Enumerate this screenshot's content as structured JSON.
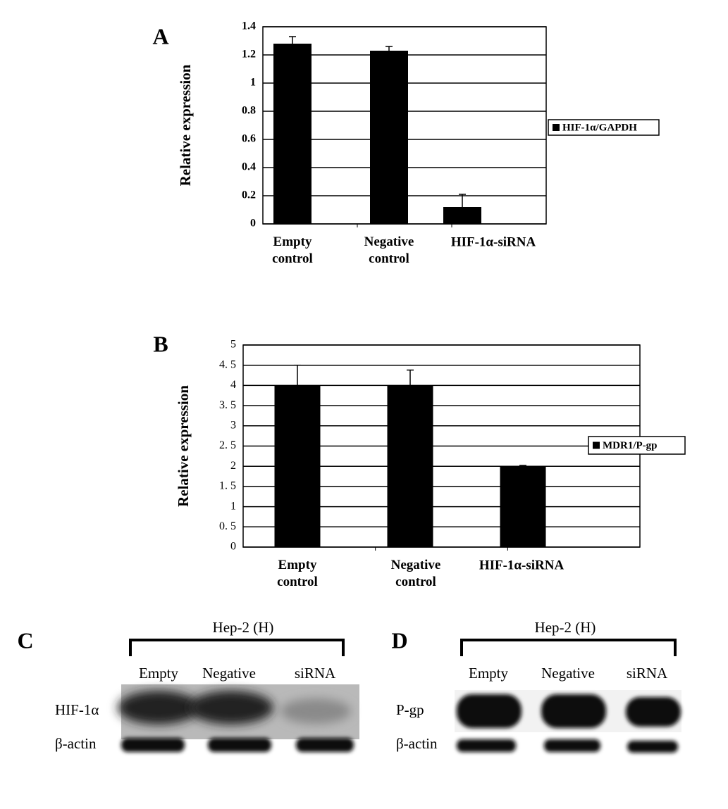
{
  "chart_data": [
    {
      "type": "bar",
      "panel": "A",
      "y_label": "Relative expression",
      "categories": [
        "Empty control",
        "Negative control",
        "HIF-1α-siRNA"
      ],
      "series": [
        {
          "name": "HIF-1α/GAPDH",
          "color": "#000000",
          "values": [
            1.28,
            1.23,
            0.12
          ],
          "errors": [
            0.05,
            0.03,
            0.09
          ]
        }
      ],
      "ylim": [
        0,
        1.4
      ],
      "yticks": [
        0,
        0.2,
        0.4,
        0.6,
        0.8,
        1,
        1.2,
        1.4
      ],
      "grid": true,
      "legend": "right"
    },
    {
      "type": "bar",
      "panel": "B",
      "y_label": "Relative expression",
      "categories": [
        "Empty control",
        "Negative control",
        "HIF-1α-siRNA"
      ],
      "series": [
        {
          "name": "MDR1/P-gp",
          "color": "#000000",
          "values": [
            4.0,
            4.0,
            2.0
          ],
          "errors": [
            0.5,
            0.38,
            0.02
          ]
        }
      ],
      "ylim": [
        0,
        5
      ],
      "yticks": [
        0,
        {
          "value": 0.5,
          "label": "0. 5"
        },
        1,
        {
          "value": 1.5,
          "label": "1. 5"
        },
        2,
        {
          "value": 2.5,
          "label": "2. 5"
        },
        3,
        {
          "value": 3.5,
          "label": "3. 5"
        },
        4,
        {
          "value": 4.5,
          "label": "4. 5"
        },
        5
      ],
      "grid": true,
      "legend": "right"
    }
  ],
  "blots": [
    {
      "panel": "C",
      "cell_line": "Hep-2 (H)",
      "lanes": [
        "Empty",
        "Negative",
        "siRNA"
      ],
      "rows": [
        "HIF-1α",
        "β-actin"
      ]
    },
    {
      "panel": "D",
      "cell_line": "Hep-2 (H)",
      "lanes": [
        "Empty",
        "Negative",
        "siRNA"
      ],
      "rows": [
        "P-gp",
        "β-actin"
      ]
    }
  ]
}
